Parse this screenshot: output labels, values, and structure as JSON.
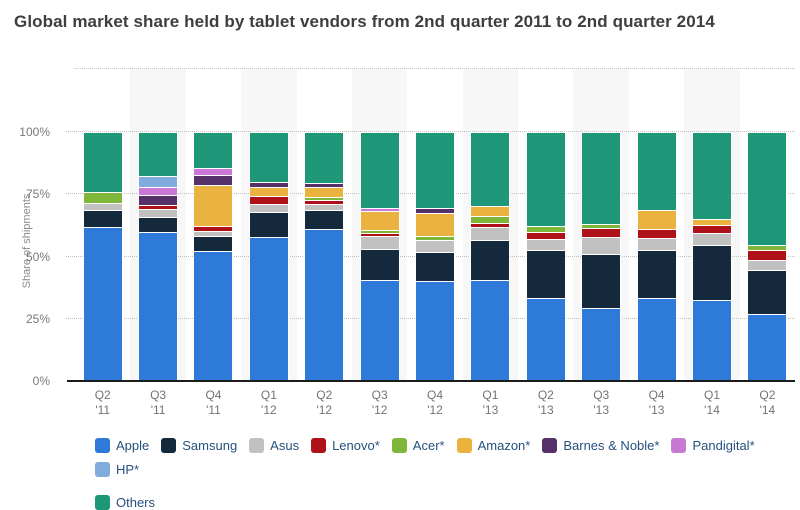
{
  "chart_data": {
    "type": "bar",
    "stacked": true,
    "title": "Global market share held by tablet vendors from 2nd quarter 2011 to 2nd quarter 2014",
    "ylabel": "Share of shipments",
    "ylim": [
      0,
      125
    ],
    "grid": true,
    "legend_position": "bottom",
    "legend_break_before": "Others",
    "yticks": [
      {
        "label": "0%",
        "value": 0
      },
      {
        "label": "25%",
        "value": 25
      },
      {
        "label": "50%",
        "value": 50
      },
      {
        "label": "75%",
        "value": 75
      },
      {
        "label": "100%",
        "value": 100
      }
    ],
    "grid_values": [
      25,
      50,
      75,
      100
    ],
    "categories": [
      {
        "top": "Q2",
        "bottom": "'11"
      },
      {
        "top": "Q3",
        "bottom": "'11"
      },
      {
        "top": "Q4",
        "bottom": "'11"
      },
      {
        "top": "Q1",
        "bottom": "'12"
      },
      {
        "top": "Q2",
        "bottom": "'12"
      },
      {
        "top": "Q3",
        "bottom": "'12"
      },
      {
        "top": "Q4",
        "bottom": "'12"
      },
      {
        "top": "Q1",
        "bottom": "'13"
      },
      {
        "top": "Q2",
        "bottom": "'13"
      },
      {
        "top": "Q3",
        "bottom": "'13"
      },
      {
        "top": "Q4",
        "bottom": "'13"
      },
      {
        "top": "Q1",
        "bottom": "'14"
      },
      {
        "top": "Q2",
        "bottom": "'14"
      }
    ],
    "series": [
      {
        "name": "Apple",
        "color": "#2e7ad9",
        "values": [
          62.0,
          60.0,
          52.3,
          58.0,
          61.0,
          40.5,
          40.3,
          40.5,
          33.3,
          29.5,
          33.5,
          32.5,
          26.9
        ]
      },
      {
        "name": "Samsung",
        "color": "#15293d",
        "values": [
          6.6,
          6.0,
          5.9,
          10.0,
          7.5,
          12.4,
          11.7,
          16.2,
          19.4,
          21.6,
          19.0,
          22.3,
          17.5
        ]
      },
      {
        "name": "Asus",
        "color": "#c1c1c1",
        "values": [
          2.8,
          3.0,
          2.0,
          3.0,
          2.6,
          5.2,
          4.8,
          5.2,
          4.3,
          6.7,
          4.8,
          4.6,
          4.1
        ]
      },
      {
        "name": "Lenovo*",
        "color": "#ae1117",
        "values": [
          0,
          1.5,
          2.1,
          3.4,
          1.6,
          1.4,
          0,
          1.7,
          2.8,
          3.7,
          3.9,
          3.3,
          4.0
        ]
      },
      {
        "name": "Acer*",
        "color": "#7eb63a",
        "values": [
          4.7,
          0,
          0,
          0,
          1.4,
          1.0,
          1.4,
          2.5,
          2.5,
          1.6,
          0,
          0,
          2.3
        ]
      },
      {
        "name": "Amazon*",
        "color": "#eab33f",
        "values": [
          0,
          0,
          16.6,
          3.7,
          3.7,
          7.8,
          9.4,
          4.2,
          0,
          0,
          7.3,
          2.2,
          0
        ]
      },
      {
        "name": "Barnes & Noble*",
        "color": "#563069",
        "values": [
          0,
          4.3,
          3.8,
          2.0,
          1.8,
          0,
          1.8,
          0,
          0,
          0,
          0,
          0,
          0
        ]
      },
      {
        "name": "Pandigital*",
        "color": "#c978d5",
        "values": [
          0,
          3.0,
          2.9,
          0,
          0,
          1.0,
          0,
          0,
          0,
          0,
          0,
          0,
          0
        ]
      },
      {
        "name": "HP*",
        "color": "#81aade",
        "values": [
          0,
          4.7,
          0,
          0,
          0,
          0,
          0,
          0,
          0,
          0,
          0,
          0,
          0
        ]
      },
      {
        "name": "Others",
        "color": "#1e9778",
        "values": [
          23.9,
          17.5,
          14.4,
          19.9,
          20.4,
          30.7,
          30.6,
          29.7,
          37.7,
          36.9,
          31.5,
          35.1,
          45.2
        ]
      }
    ]
  }
}
